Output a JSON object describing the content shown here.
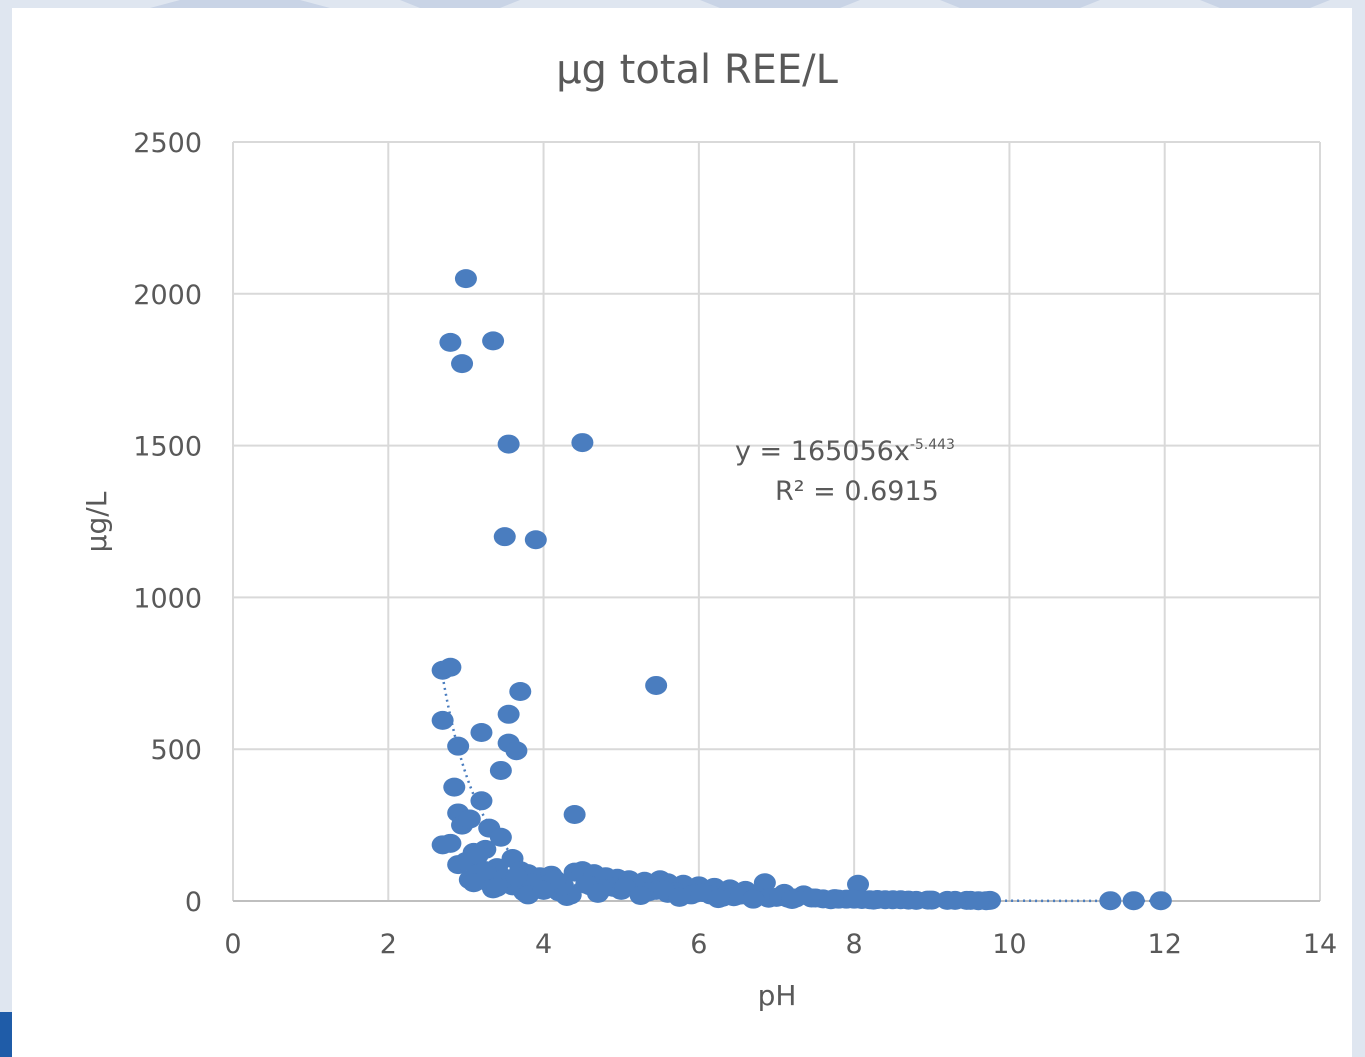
{
  "chart_data": {
    "type": "scatter",
    "title": "µg total REE/L",
    "xlabel": "pH",
    "ylabel": "µg/L",
    "xlim": [
      0,
      14
    ],
    "ylim": [
      0,
      2500
    ],
    "x_ticks": [
      "0",
      "2",
      "4",
      "6",
      "8",
      "10",
      "12",
      "14"
    ],
    "y_ticks": [
      "0",
      "500",
      "1000",
      "1500",
      "2000",
      "2500"
    ],
    "grid": true,
    "marker_color": "#4a7dbf",
    "trendline": {
      "type": "power",
      "coefficient": 165056,
      "exponent": -5.443,
      "style": "dotted",
      "x_range": [
        2.7,
        12
      ],
      "equation_main": "y = 165056x",
      "equation_exp": "-5.443",
      "r2_label": "R² = 0.6915"
    },
    "series": [
      {
        "x": [
          3.0,
          2.8,
          3.35,
          2.95,
          3.55,
          4.5,
          3.5,
          3.9,
          2.7,
          2.8,
          5.45,
          3.7,
          2.7,
          3.55,
          2.9,
          3.2,
          3.55,
          2.85,
          3.65,
          3.45,
          2.9,
          3.2,
          4.4,
          2.95,
          3.05,
          3.3,
          3.45,
          2.7,
          2.8,
          3.1,
          3.25,
          3.6,
          2.9,
          3.0,
          3.15,
          3.4,
          3.7,
          3.8,
          3.95,
          4.1,
          4.4,
          4.5,
          4.65,
          4.8,
          4.95,
          5.1,
          5.3,
          5.5,
          5.6,
          5.8,
          6.0,
          6.2,
          6.4,
          6.6,
          6.85,
          7.1,
          7.35,
          8.05,
          3.3,
          3.6,
          3.9,
          4.2,
          4.35,
          4.6,
          4.9,
          5.2,
          5.45,
          5.7,
          5.95,
          6.15,
          6.5,
          6.75,
          7.0,
          7.25,
          7.5,
          7.75,
          7.9,
          8.1,
          8.3,
          8.5,
          8.7,
          8.95,
          9.2,
          9.45,
          9.7,
          11.3,
          11.6,
          11.95,
          3.05,
          3.35,
          3.75,
          4.05,
          4.3,
          5.0,
          5.6,
          6.3,
          6.9,
          7.6,
          8.2,
          9.0,
          9.5,
          3.15,
          3.5,
          3.85,
          4.25,
          4.75,
          5.35,
          5.9,
          6.45,
          7.15,
          7.8,
          8.4,
          9.3,
          9.75,
          3.25,
          3.65,
          4.15,
          4.55,
          5.05,
          5.55,
          6.05,
          6.55,
          7.05,
          7.45,
          8.0,
          8.6,
          3.1,
          3.4,
          3.8,
          4.0,
          4.7,
          5.25,
          5.75,
          6.25,
          6.7,
          7.2,
          7.7,
          8.25,
          8.8,
          9.6
        ],
        "y": [
          2050,
          1840,
          1845,
          1770,
          1505,
          1510,
          1200,
          1190,
          760,
          770,
          710,
          690,
          595,
          615,
          510,
          555,
          520,
          375,
          495,
          430,
          290,
          330,
          285,
          250,
          270,
          240,
          210,
          185,
          190,
          160,
          170,
          140,
          120,
          130,
          150,
          110,
          100,
          90,
          80,
          85,
          95,
          100,
          90,
          80,
          75,
          70,
          65,
          70,
          60,
          55,
          50,
          45,
          40,
          35,
          60,
          25,
          20,
          55,
          60,
          50,
          40,
          30,
          20,
          50,
          45,
          40,
          35,
          30,
          25,
          20,
          18,
          15,
          12,
          10,
          10,
          8,
          6,
          5,
          5,
          4,
          3,
          3,
          2,
          2,
          1,
          1,
          1,
          1,
          70,
          40,
          30,
          55,
          15,
          35,
          25,
          12,
          9,
          7,
          4,
          3,
          2,
          90,
          75,
          60,
          50,
          40,
          30,
          20,
          14,
          9,
          6,
          4,
          2,
          2,
          100,
          80,
          70,
          55,
          45,
          35,
          28,
          20,
          15,
          10,
          6,
          4,
          60,
          45,
          20,
          35,
          25,
          18,
          12,
          8,
          6,
          5,
          4,
          3,
          2,
          1
        ]
      }
    ]
  }
}
